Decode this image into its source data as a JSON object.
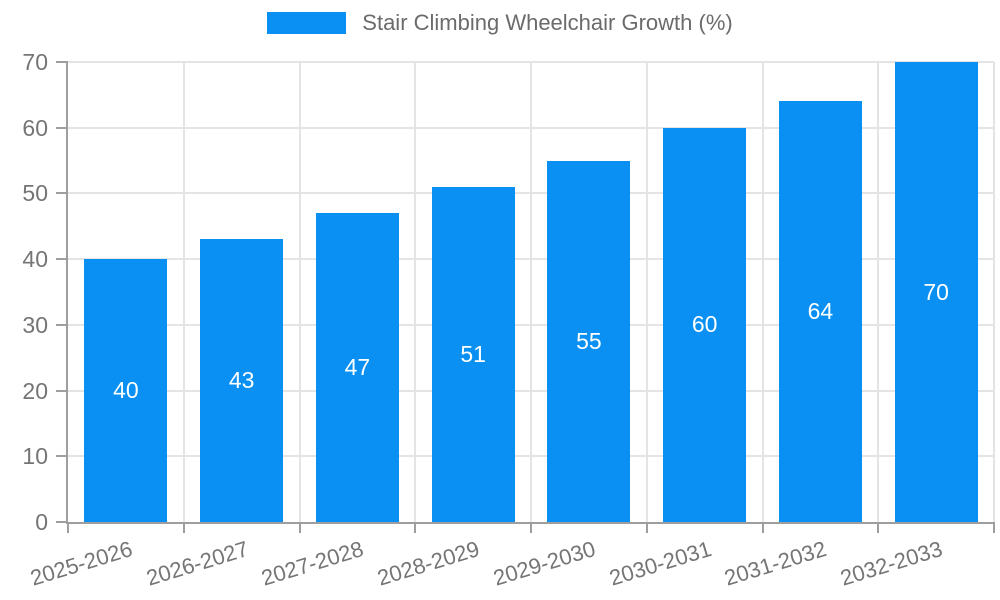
{
  "legend": {
    "label": "Stair Climbing Wheelchair Growth (%)"
  },
  "colors": {
    "bar": "#0990f2",
    "axis": "#9e9e9e",
    "grid": "#e4e4e4",
    "tick_text": "#757575",
    "legend_text": "#6b6b6b",
    "value_text": "#ffffff"
  },
  "chart_data": {
    "type": "bar",
    "title": "Stair Climbing Wheelchair Growth (%)",
    "categories": [
      "2025-2026",
      "2026-2027",
      "2027-2028",
      "2028-2029",
      "2029-2030",
      "2030-2031",
      "2031-2032",
      "2032-2033"
    ],
    "values": [
      40,
      43,
      47,
      51,
      55,
      60,
      64,
      70
    ],
    "xlabel": "",
    "ylabel": "",
    "ylim": [
      0,
      70
    ],
    "yticks": [
      0,
      10,
      20,
      30,
      40,
      50,
      60,
      70
    ],
    "grid": true,
    "legend_position": "top-center",
    "value_labels": "inside-center"
  }
}
